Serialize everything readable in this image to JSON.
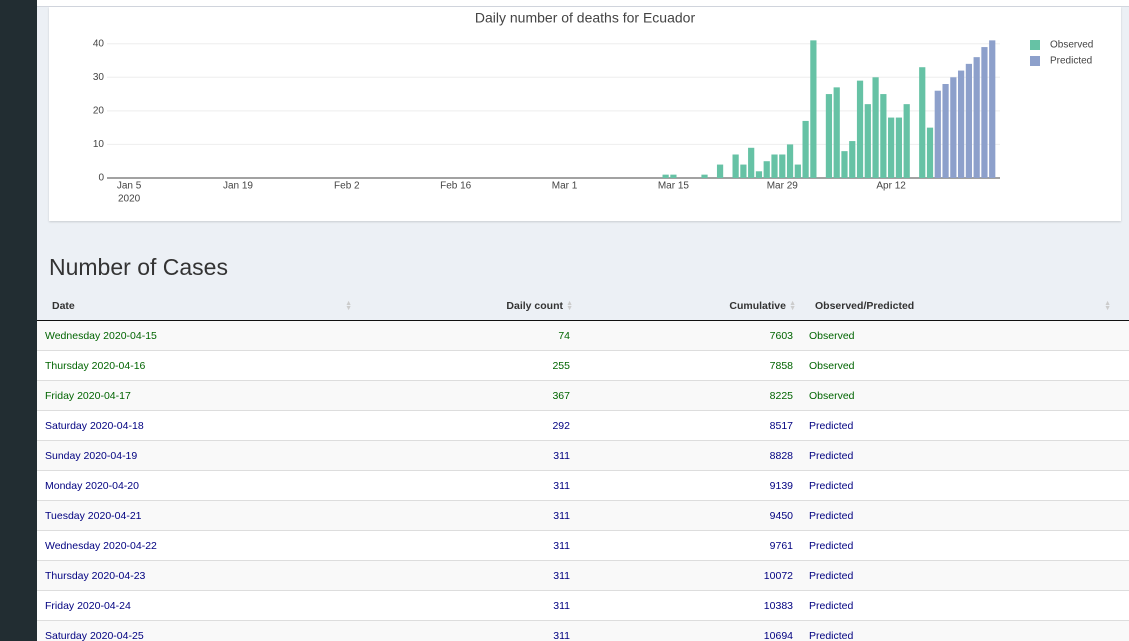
{
  "chart_data": {
    "type": "bar",
    "title": "Daily number of deaths for Ecuador",
    "x": [
      "2020-03-14",
      "2020-03-15",
      "2020-03-16",
      "2020-03-17",
      "2020-03-18",
      "2020-03-19",
      "2020-03-20",
      "2020-03-21",
      "2020-03-22",
      "2020-03-23",
      "2020-03-24",
      "2020-03-25",
      "2020-03-26",
      "2020-03-27",
      "2020-03-28",
      "2020-03-29",
      "2020-03-30",
      "2020-03-31",
      "2020-04-01",
      "2020-04-02",
      "2020-04-03",
      "2020-04-04",
      "2020-04-05",
      "2020-04-06",
      "2020-04-07",
      "2020-04-08",
      "2020-04-09",
      "2020-04-10",
      "2020-04-11",
      "2020-04-12",
      "2020-04-13",
      "2020-04-14",
      "2020-04-15",
      "2020-04-16",
      "2020-04-17",
      "2020-04-18",
      "2020-04-19",
      "2020-04-20",
      "2020-04-21",
      "2020-04-22",
      "2020-04-23",
      "2020-04-24",
      "2020-04-25"
    ],
    "series": [
      {
        "name": "Observed",
        "color": "#66c2a5",
        "values": [
          1,
          1,
          0,
          0,
          0,
          1,
          0,
          4,
          0,
          7,
          4,
          9,
          2,
          5,
          7,
          7,
          10,
          4,
          17,
          41,
          0,
          25,
          27,
          8,
          11,
          29,
          22,
          30,
          25,
          18,
          18,
          22,
          0,
          33,
          15,
          null,
          null,
          null,
          null,
          null,
          null,
          null,
          null
        ]
      },
      {
        "name": "Predicted",
        "color": "#8da0cb",
        "values": [
          null,
          null,
          null,
          null,
          null,
          null,
          null,
          null,
          null,
          null,
          null,
          null,
          null,
          null,
          null,
          null,
          null,
          null,
          null,
          null,
          null,
          null,
          null,
          null,
          null,
          null,
          null,
          null,
          null,
          null,
          null,
          null,
          null,
          null,
          null,
          26,
          28,
          30,
          32,
          34,
          36,
          39,
          41
        ]
      }
    ],
    "xlim": [
      "2020-01-01",
      "2020-04-26"
    ],
    "xticks": [
      {
        "value": "2020-01-05",
        "label": "Jan 5"
      },
      {
        "value": "2020-01-19",
        "label": "Jan 19"
      },
      {
        "value": "2020-02-02",
        "label": "Feb 2"
      },
      {
        "value": "2020-02-16",
        "label": "Feb 16"
      },
      {
        "value": "2020-03-01",
        "label": "Mar 1"
      },
      {
        "value": "2020-03-15",
        "label": "Mar 15"
      },
      {
        "value": "2020-03-29",
        "label": "Mar 29"
      },
      {
        "value": "2020-04-12",
        "label": "Apr 12"
      }
    ],
    "x_tick_year": "2020",
    "ylim": [
      0,
      42
    ],
    "yticks": [
      0,
      10,
      20,
      30,
      40
    ],
    "grid": true,
    "legend": "right"
  },
  "table": {
    "title": "Number of Cases",
    "columns": [
      "Date",
      "Daily count",
      "Cumulative",
      "Observed/Predicted"
    ],
    "rows": [
      [
        "Wednesday 2020-04-15",
        74,
        7603,
        "Observed"
      ],
      [
        "Thursday 2020-04-16",
        255,
        7858,
        "Observed"
      ],
      [
        "Friday 2020-04-17",
        367,
        8225,
        "Observed"
      ],
      [
        "Saturday 2020-04-18",
        292,
        8517,
        "Predicted"
      ],
      [
        "Sunday 2020-04-19",
        311,
        8828,
        "Predicted"
      ],
      [
        "Monday 2020-04-20",
        311,
        9139,
        "Predicted"
      ],
      [
        "Tuesday 2020-04-21",
        311,
        9450,
        "Predicted"
      ],
      [
        "Wednesday 2020-04-22",
        311,
        9761,
        "Predicted"
      ],
      [
        "Thursday 2020-04-23",
        311,
        10072,
        "Predicted"
      ],
      [
        "Friday 2020-04-24",
        311,
        10383,
        "Predicted"
      ],
      [
        "Saturday 2020-04-25",
        311,
        10694,
        "Predicted"
      ]
    ],
    "row_colors": [
      "#006400",
      "#006400",
      "#006400",
      "#000080",
      "#000080",
      "#000080",
      "#000080",
      "#000080",
      "#000080",
      "#000080",
      "#000080"
    ]
  }
}
